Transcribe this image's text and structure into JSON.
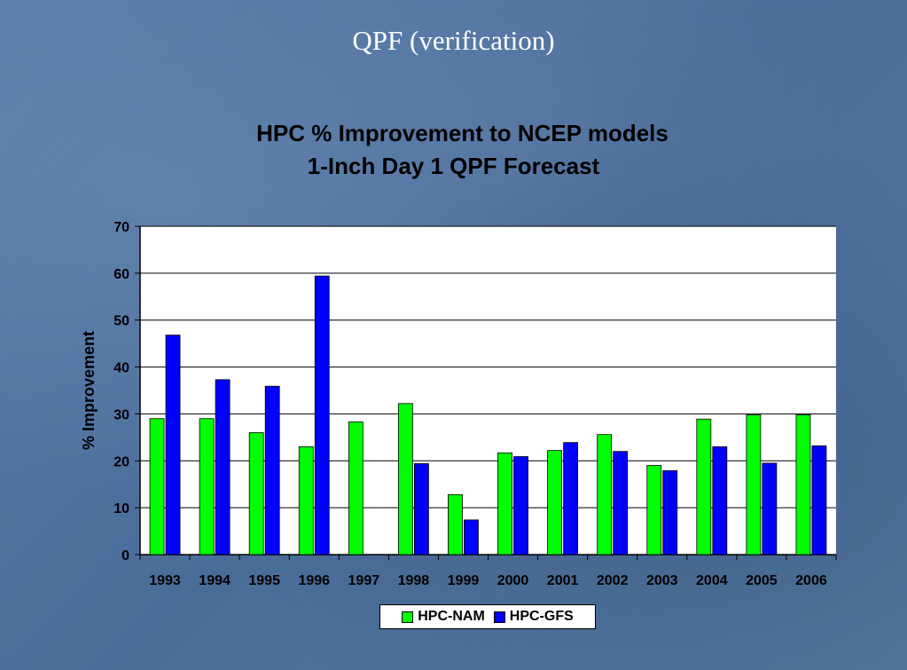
{
  "slide_title": "QPF (verification)",
  "chart_data": {
    "type": "bar",
    "title": "HPC % Improvement to NCEP models",
    "subtitle": "1-Inch Day 1 QPF Forecast",
    "xlabel": "",
    "ylabel": "% Improvement",
    "ylim": [
      0,
      70
    ],
    "yticks": [
      0,
      10,
      20,
      30,
      40,
      50,
      60,
      70
    ],
    "grid": true,
    "legend_position": "bottom",
    "categories": [
      "1993",
      "1994",
      "1995",
      "1996",
      "1997",
      "1998",
      "1999",
      "2000",
      "2001",
      "2002",
      "2003",
      "2004",
      "2005",
      "2006"
    ],
    "series": [
      {
        "name": "HPC-NAM",
        "color": "#00ff00",
        "values": [
          29,
          29,
          26,
          23,
          28.3,
          32.2,
          12.8,
          21.7,
          22.2,
          25.6,
          19,
          28.9,
          29.8,
          29.8
        ]
      },
      {
        "name": "HPC-GFS",
        "color": "#0000ff",
        "values": [
          46.8,
          37.3,
          35.9,
          59.4,
          null,
          19.4,
          7.4,
          20.9,
          23.9,
          22,
          17.9,
          23,
          19.5,
          23.2
        ]
      }
    ]
  }
}
